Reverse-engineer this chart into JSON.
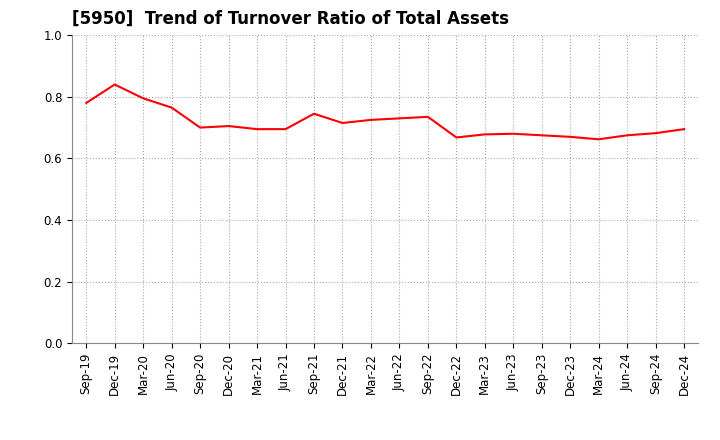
{
  "title": "[5950]  Trend of Turnover Ratio of Total Assets",
  "x_labels": [
    "Sep-19",
    "Dec-19",
    "Mar-20",
    "Jun-20",
    "Sep-20",
    "Dec-20",
    "Mar-21",
    "Jun-21",
    "Sep-21",
    "Dec-21",
    "Mar-22",
    "Jun-22",
    "Sep-22",
    "Dec-22",
    "Mar-23",
    "Jun-23",
    "Sep-23",
    "Dec-23",
    "Mar-24",
    "Jun-24",
    "Sep-24",
    "Dec-24"
  ],
  "y_values": [
    0.78,
    0.84,
    0.795,
    0.765,
    0.7,
    0.705,
    0.695,
    0.695,
    0.745,
    0.715,
    0.725,
    0.73,
    0.735,
    0.668,
    0.678,
    0.68,
    0.675,
    0.67,
    0.662,
    0.675,
    0.682,
    0.695
  ],
  "line_color": "#FF0000",
  "line_width": 1.5,
  "ylim": [
    0.0,
    1.0
  ],
  "yticks": [
    0.0,
    0.2,
    0.4,
    0.6,
    0.8,
    1.0
  ],
  "background_color": "#ffffff",
  "plot_bg_color": "#ffffff",
  "grid_color": "#aaaaaa",
  "title_fontsize": 12,
  "tick_fontsize": 8.5
}
